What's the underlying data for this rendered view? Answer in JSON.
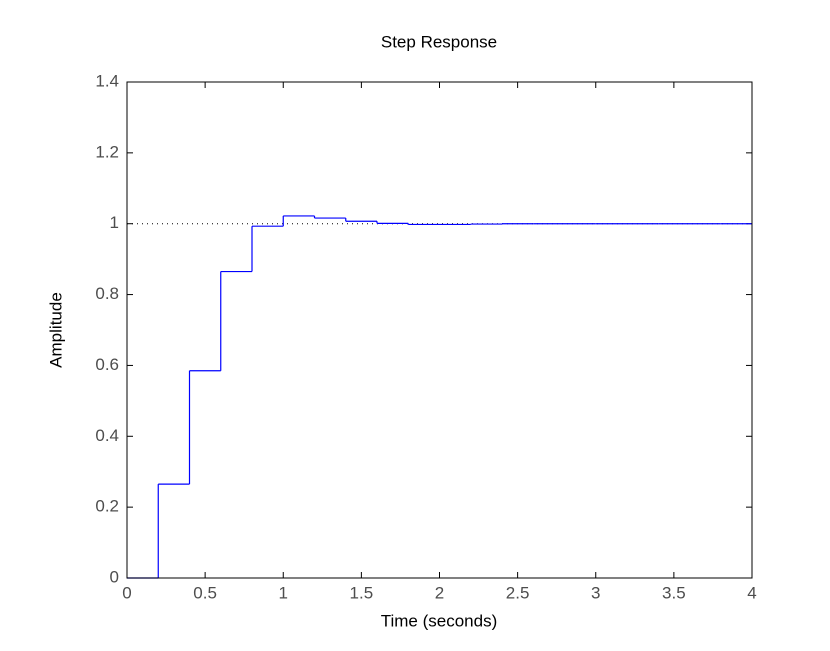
{
  "chart_data": {
    "type": "step",
    "title": "Step Response",
    "x_label": "Time (seconds)",
    "y_label": "Amplitude",
    "x": [
      0,
      0.2,
      0.4,
      0.6,
      0.8,
      1.0,
      1.2,
      1.4,
      1.6,
      1.8,
      2.0,
      2.2,
      2.4,
      2.6,
      2.8,
      3.0,
      3.2,
      3.4,
      3.6,
      3.8,
      4.0
    ],
    "values": [
      0,
      0.265,
      0.585,
      0.865,
      0.993,
      1.022,
      1.016,
      1.007,
      1.001,
      0.998,
      0.998,
      0.999,
      1.0,
      1.0,
      1.0,
      1.0,
      1.0,
      1.0,
      1.0,
      1.0,
      1.0
    ],
    "color": "#0000ff",
    "reference_line": 1,
    "xlim": [
      0,
      4
    ],
    "xticks": [
      0,
      0.5,
      1,
      1.5,
      2,
      2.5,
      3,
      3.5,
      4
    ],
    "ylim": [
      0,
      1.4
    ],
    "yticks": [
      0,
      0.2,
      0.4,
      0.6,
      0.8,
      1,
      1.2,
      1.4
    ]
  }
}
